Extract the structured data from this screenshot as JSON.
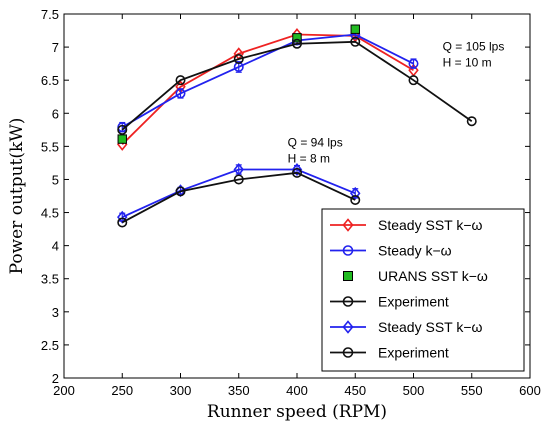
{
  "chart_data": {
    "type": "line",
    "xlabel": "Runner speed (RPM)",
    "ylabel": "Power output(kW)",
    "xlim": [
      200,
      600
    ],
    "ylim": [
      2,
      7.5
    ],
    "xticks": [
      200,
      250,
      300,
      350,
      400,
      450,
      500,
      550,
      600
    ],
    "yticks": [
      2,
      2.5,
      3,
      3.5,
      4,
      4.5,
      5,
      5.5,
      6,
      6.5,
      7,
      7.5
    ],
    "grid": false,
    "legend_position": "bottom-right",
    "annotations": [
      {
        "lines": [
          "Q = 105 lps",
          "H = 10 m"
        ],
        "x": 525,
        "y": 6.95
      },
      {
        "lines": [
          "Q = 94 lps",
          "H = 8 m"
        ],
        "x": 392,
        "y": 5.5
      }
    ],
    "series": [
      {
        "name": "Steady SST k−ω",
        "color": "#ee2222",
        "marker": "diamond",
        "line": true,
        "x": [
          250,
          300,
          350,
          400,
          450,
          500
        ],
        "y": [
          5.53,
          6.4,
          6.9,
          7.19,
          7.17,
          6.65
        ],
        "err": [
          0,
          0,
          0,
          0,
          0,
          0
        ]
      },
      {
        "name": "Steady k−ω",
        "color": "#2222ee",
        "marker": "circle",
        "line": true,
        "x": [
          250,
          300,
          350,
          400,
          450,
          500
        ],
        "y": [
          5.79,
          6.3,
          6.7,
          7.1,
          7.19,
          6.75
        ],
        "err": [
          0.07,
          0.07,
          0.08,
          0.06,
          0.05,
          0.07
        ]
      },
      {
        "name": "URANS SST k−ω",
        "color": "#22bb22",
        "marker": "square",
        "line": false,
        "x": [
          250,
          400,
          450
        ],
        "y": [
          5.61,
          7.14,
          7.27
        ],
        "err": [
          0,
          0,
          0
        ]
      },
      {
        "name": "Experiment",
        "color": "#111111",
        "marker": "circle",
        "line": true,
        "x": [
          250,
          300,
          350,
          400,
          450,
          500,
          550
        ],
        "y": [
          5.75,
          6.5,
          6.82,
          7.05,
          7.08,
          6.5,
          5.88
        ],
        "err": [
          0,
          0,
          0,
          0,
          0,
          0,
          0
        ]
      },
      {
        "name": "Steady SST k−ω",
        "color": "#2222ee",
        "marker": "diamond",
        "line": true,
        "x": [
          250,
          300,
          350,
          400,
          450
        ],
        "y": [
          4.43,
          4.83,
          5.15,
          5.15,
          4.79
        ],
        "err": [
          0.06,
          0.05,
          0.07,
          0.06,
          0.07
        ]
      },
      {
        "name": "Experiment",
        "color": "#111111",
        "marker": "circle",
        "line": true,
        "x": [
          250,
          300,
          350,
          400,
          450
        ],
        "y": [
          4.35,
          4.82,
          5.0,
          5.1,
          4.69
        ],
        "err": [
          0,
          0,
          0,
          0,
          0
        ]
      }
    ]
  }
}
